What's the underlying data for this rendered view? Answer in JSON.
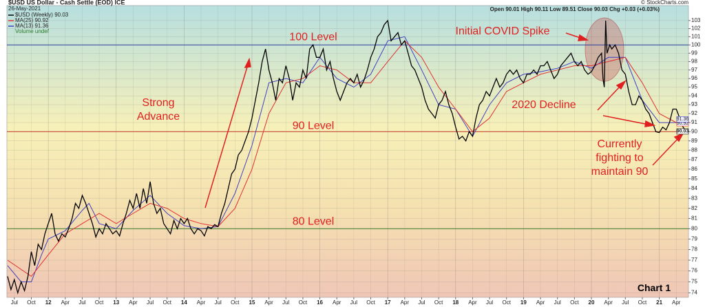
{
  "chart_data": {
    "type": "line",
    "title": "$USD US Dollar - Cash Settle (EOD) ICE",
    "date": "26-May-2021",
    "ohlc": "Open 90.01 High 90.11 Low 89.51 Close 90.03 Chg +0.03 (+0.03%)",
    "source": "© StockCharts.com",
    "volume_note": "Volume undef",
    "log_scale": true,
    "xlim": [
      2011.39,
      2021.43
    ],
    "ylim": [
      73.6,
      104.9
    ],
    "yticks": [
      74,
      75,
      76,
      77,
      78,
      79,
      80,
      81,
      82,
      83,
      84,
      85,
      86,
      87,
      88,
      89,
      90,
      91,
      92,
      93,
      94,
      95,
      96,
      97,
      98,
      99,
      100,
      101,
      102,
      103
    ],
    "xticks": [
      {
        "value": 2011.5,
        "label": "Jul"
      },
      {
        "value": 2011.75,
        "label": "Oct"
      },
      {
        "value": 2012,
        "label": "12"
      },
      {
        "value": 2012.25,
        "label": "Apr"
      },
      {
        "value": 2012.5,
        "label": "Jul"
      },
      {
        "value": 2012.75,
        "label": "Oct"
      },
      {
        "value": 2013,
        "label": "13"
      },
      {
        "value": 2013.25,
        "label": "Apr"
      },
      {
        "value": 2013.5,
        "label": "Jul"
      },
      {
        "value": 2013.75,
        "label": "Oct"
      },
      {
        "value": 2014,
        "label": "14"
      },
      {
        "value": 2014.25,
        "label": "Apr"
      },
      {
        "value": 2014.5,
        "label": "Jul"
      },
      {
        "value": 2014.75,
        "label": "Oct"
      },
      {
        "value": 2015,
        "label": "15"
      },
      {
        "value": 2015.25,
        "label": "Apr"
      },
      {
        "value": 2015.5,
        "label": "Jul"
      },
      {
        "value": 2015.75,
        "label": "Oct"
      },
      {
        "value": 2016,
        "label": "16"
      },
      {
        "value": 2016.25,
        "label": "Apr"
      },
      {
        "value": 2016.5,
        "label": "Jul"
      },
      {
        "value": 2016.75,
        "label": "Oct"
      },
      {
        "value": 2017,
        "label": "17"
      },
      {
        "value": 2017.25,
        "label": "Apr"
      },
      {
        "value": 2017.5,
        "label": "Jul"
      },
      {
        "value": 2017.75,
        "label": "Oct"
      },
      {
        "value": 2018,
        "label": "18"
      },
      {
        "value": 2018.25,
        "label": "Apr"
      },
      {
        "value": 2018.5,
        "label": "Jul"
      },
      {
        "value": 2018.75,
        "label": "Oct"
      },
      {
        "value": 2019,
        "label": "19"
      },
      {
        "value": 2019.25,
        "label": "Apr"
      },
      {
        "value": 2019.5,
        "label": "Jul"
      },
      {
        "value": 2019.75,
        "label": "Oct"
      },
      {
        "value": 2020,
        "label": "20"
      },
      {
        "value": 2020.25,
        "label": "Apr"
      },
      {
        "value": 2020.5,
        "label": "Jul"
      },
      {
        "value": 2020.75,
        "label": "Oct"
      },
      {
        "value": 2021,
        "label": "21"
      },
      {
        "value": 2021.25,
        "label": "Apr"
      }
    ],
    "hlines": [
      {
        "value": 100,
        "color": "#2b3c9e",
        "label": "100 Level"
      },
      {
        "value": 90,
        "color": "#c0392b",
        "label": "90 Level"
      },
      {
        "value": 80,
        "color": "#3a7d2c",
        "label": "80 Level"
      }
    ],
    "series": [
      {
        "name": "$USD (Weekly) 90.03",
        "color": "#000000",
        "end_label": 90.03,
        "x": [
          2011.4,
          2011.45,
          2011.5,
          2011.55,
          2011.6,
          2011.65,
          2011.7,
          2011.75,
          2011.8,
          2011.85,
          2011.9,
          2011.95,
          2012.0,
          2012.05,
          2012.1,
          2012.15,
          2012.2,
          2012.25,
          2012.3,
          2012.35,
          2012.4,
          2012.45,
          2012.5,
          2012.55,
          2012.6,
          2012.65,
          2012.7,
          2012.75,
          2012.8,
          2012.85,
          2012.9,
          2012.95,
          2013.0,
          2013.05,
          2013.1,
          2013.15,
          2013.2,
          2013.25,
          2013.3,
          2013.35,
          2013.4,
          2013.45,
          2013.5,
          2013.55,
          2013.6,
          2013.65,
          2013.7,
          2013.75,
          2013.8,
          2013.85,
          2013.9,
          2013.95,
          2014.0,
          2014.05,
          2014.1,
          2014.15,
          2014.2,
          2014.25,
          2014.3,
          2014.35,
          2014.4,
          2014.45,
          2014.5,
          2014.55,
          2014.6,
          2014.65,
          2014.7,
          2014.75,
          2014.8,
          2014.85,
          2014.9,
          2014.95,
          2015.0,
          2015.05,
          2015.1,
          2015.15,
          2015.2,
          2015.25,
          2015.3,
          2015.35,
          2015.4,
          2015.45,
          2015.5,
          2015.55,
          2015.6,
          2015.65,
          2015.7,
          2015.75,
          2015.8,
          2015.85,
          2015.9,
          2015.95,
          2016.0,
          2016.05,
          2016.1,
          2016.15,
          2016.2,
          2016.25,
          2016.3,
          2016.35,
          2016.4,
          2016.45,
          2016.5,
          2016.55,
          2016.6,
          2016.65,
          2016.7,
          2016.75,
          2016.8,
          2016.85,
          2016.9,
          2016.95,
          2017.0,
          2017.05,
          2017.1,
          2017.15,
          2017.2,
          2017.25,
          2017.3,
          2017.35,
          2017.4,
          2017.45,
          2017.5,
          2017.55,
          2017.6,
          2017.65,
          2017.7,
          2017.75,
          2017.8,
          2017.85,
          2017.9,
          2017.95,
          2018.0,
          2018.05,
          2018.1,
          2018.15,
          2018.2,
          2018.25,
          2018.3,
          2018.35,
          2018.4,
          2018.45,
          2018.5,
          2018.55,
          2018.6,
          2018.65,
          2018.7,
          2018.75,
          2018.8,
          2018.85,
          2018.9,
          2018.95,
          2019.0,
          2019.05,
          2019.1,
          2019.15,
          2019.2,
          2019.25,
          2019.3,
          2019.35,
          2019.4,
          2019.45,
          2019.5,
          2019.55,
          2019.6,
          2019.65,
          2019.7,
          2019.75,
          2019.8,
          2019.85,
          2019.9,
          2019.95,
          2020.0,
          2020.05,
          2020.1,
          2020.15,
          2020.17,
          2020.19,
          2020.21,
          2020.23,
          2020.27,
          2020.3,
          2020.35,
          2020.4,
          2020.45,
          2020.5,
          2020.55,
          2020.6,
          2020.65,
          2020.7,
          2020.75,
          2020.8,
          2020.85,
          2020.9,
          2020.95,
          2021.0,
          2021.05,
          2021.1,
          2021.15,
          2021.2,
          2021.25,
          2021.3,
          2021.35,
          2021.4
        ],
        "values": [
          75.5,
          74.3,
          75.2,
          74.0,
          75.0,
          74.2,
          75.5,
          77.8,
          76.5,
          78.5,
          78.0,
          79.5,
          80.5,
          81.5,
          79.5,
          78.8,
          79.5,
          79.2,
          80.0,
          81.0,
          82.5,
          82.0,
          83.3,
          82.5,
          81.5,
          80.5,
          79.2,
          80.0,
          79.5,
          80.5,
          80.0,
          79.5,
          79.8,
          79.3,
          80.5,
          81.5,
          82.8,
          82.0,
          83.5,
          82.0,
          84.0,
          82.5,
          84.7,
          82.5,
          81.5,
          82.0,
          80.5,
          80.0,
          79.5,
          80.8,
          80.0,
          81.0,
          80.5,
          81.0,
          80.0,
          79.5,
          80.0,
          79.8,
          79.3,
          80.2,
          80.0,
          80.4,
          80.2,
          81.5,
          82.5,
          84.0,
          85.5,
          86.0,
          87.5,
          88.0,
          89.0,
          90.0,
          91.5,
          93.5,
          95.5,
          98.0,
          99.5,
          97.0,
          95.5,
          93.5,
          96.0,
          95.5,
          97.5,
          96.0,
          93.5,
          95.5,
          95.0,
          97.0,
          96.0,
          99.5,
          100.0,
          98.5,
          98.5,
          99.5,
          97.0,
          98.0,
          96.0,
          94.5,
          93.5,
          94.5,
          95.5,
          96.0,
          95.5,
          96.5,
          95.0,
          95.8,
          97.0,
          98.5,
          99.5,
          101.0,
          101.5,
          102.5,
          103.0,
          100.5,
          101.0,
          101.5,
          100.0,
          100.5,
          99.0,
          97.5,
          97.0,
          96.0,
          95.0,
          93.5,
          92.5,
          92.0,
          91.5,
          93.0,
          93.5,
          94.5,
          93.0,
          92.0,
          90.5,
          89.2,
          89.5,
          89.0,
          90.0,
          89.5,
          91.5,
          93.0,
          93.5,
          94.5,
          94.0,
          95.0,
          96.0,
          95.0,
          95.5,
          96.5,
          97.0,
          96.5,
          97.0,
          96.0,
          95.5,
          96.5,
          96.5,
          97.0,
          96.5,
          97.5,
          97.5,
          98.0,
          97.0,
          96.0,
          96.5,
          97.5,
          98.0,
          98.5,
          99.0,
          98.0,
          97.5,
          98.0,
          97.0,
          96.5,
          96.8,
          97.5,
          98.5,
          99.0,
          96.0,
          95.0,
          103.0,
          99.0,
          100.0,
          99.5,
          100.0,
          99.0,
          97.0,
          96.5,
          94.5,
          93.0,
          93.0,
          94.0,
          93.5,
          92.5,
          92.0,
          91.0,
          90.0,
          89.9,
          90.5,
          90.2,
          91.0,
          92.5,
          92.5,
          91.5,
          90.5,
          90.03
        ]
      },
      {
        "name": "MA(25) 90.92",
        "color": "#e03030",
        "end_label": 90.92,
        "x": [
          2011.4,
          2011.75,
          2012.0,
          2012.25,
          2012.5,
          2012.75,
          2013.0,
          2013.25,
          2013.5,
          2013.75,
          2014.0,
          2014.25,
          2014.5,
          2014.75,
          2015.0,
          2015.25,
          2015.5,
          2015.75,
          2016.0,
          2016.25,
          2016.5,
          2016.75,
          2017.0,
          2017.25,
          2017.5,
          2017.75,
          2018.0,
          2018.25,
          2018.5,
          2018.75,
          2019.0,
          2019.25,
          2019.5,
          2019.75,
          2020.0,
          2020.25,
          2020.5,
          2020.75,
          2021.0,
          2021.25,
          2021.4
        ],
        "values": [
          77.0,
          75.5,
          77.5,
          79.5,
          80.5,
          81.5,
          80.5,
          81.5,
          82.5,
          82.0,
          81.0,
          80.5,
          80.2,
          82.0,
          86.0,
          92.0,
          95.5,
          96.0,
          97.5,
          97.0,
          95.5,
          95.5,
          98.0,
          100.5,
          98.5,
          95.0,
          92.5,
          90.0,
          91.5,
          94.5,
          95.5,
          96.5,
          97.0,
          97.5,
          97.5,
          98.0,
          98.5,
          95.5,
          92.0,
          91.0,
          90.92
        ]
      },
      {
        "name": "MA(13) 91.36",
        "color": "#4040c0",
        "end_label": 91.36,
        "x": [
          2011.4,
          2011.6,
          2011.75,
          2011.9,
          2012.0,
          2012.25,
          2012.5,
          2012.6,
          2012.75,
          2013.0,
          2013.25,
          2013.5,
          2013.75,
          2014.0,
          2014.25,
          2014.5,
          2014.75,
          2015.0,
          2015.25,
          2015.5,
          2015.75,
          2016.0,
          2016.25,
          2016.5,
          2016.75,
          2017.0,
          2017.25,
          2017.5,
          2017.75,
          2018.0,
          2018.25,
          2018.5,
          2018.75,
          2019.0,
          2019.25,
          2019.5,
          2019.75,
          2020.0,
          2020.25,
          2020.5,
          2020.75,
          2021.0,
          2021.25,
          2021.4
        ],
        "values": [
          76.5,
          75.0,
          75.0,
          77.5,
          79.0,
          79.8,
          81.8,
          82.5,
          80.5,
          80.0,
          81.8,
          83.3,
          81.5,
          80.3,
          80.0,
          80.2,
          83.5,
          88.5,
          95.5,
          96.0,
          95.5,
          98.5,
          96.0,
          95.0,
          96.5,
          100.5,
          101.0,
          97.0,
          93.0,
          92.5,
          89.5,
          93.0,
          95.5,
          96.5,
          96.8,
          97.2,
          98.0,
          97.2,
          98.5,
          98.5,
          93.5,
          91.0,
          91.0,
          91.36
        ]
      }
    ],
    "annotations": [
      "Strong Advance",
      "Initial COVID Spike",
      "2020 Decline",
      "Currently fighting to maintain 90",
      "Chart 1"
    ]
  }
}
